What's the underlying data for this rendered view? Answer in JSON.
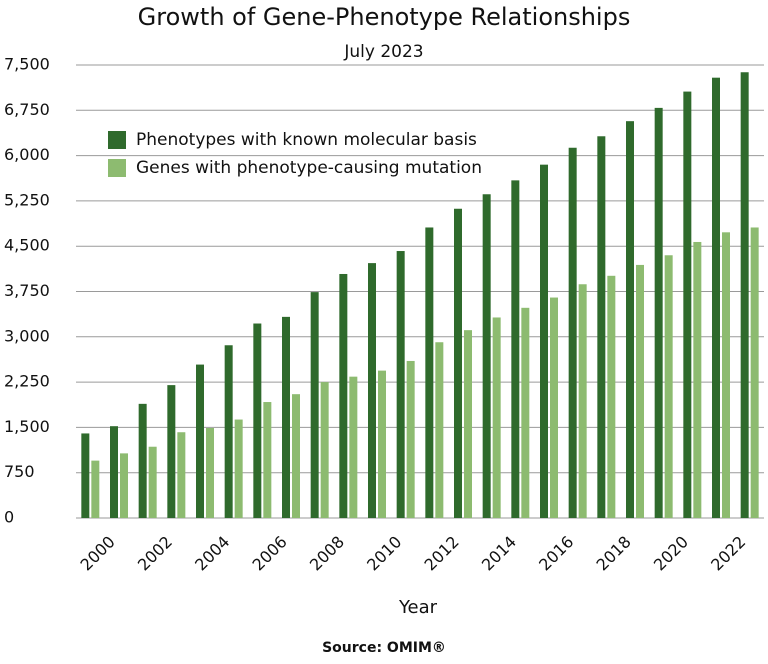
{
  "chart_data": {
    "type": "bar",
    "title": "Growth of Gene-Phenotype Relationships",
    "subtitle": "July 2023",
    "x_label": "Year",
    "source": "Source:  OMIM®",
    "categories": [
      "2000",
      null,
      "2002",
      null,
      "2004",
      null,
      "2006",
      null,
      "2008",
      null,
      "2010",
      null,
      "2012",
      null,
      "2014",
      null,
      "2016",
      null,
      "2018",
      null,
      "2020",
      null,
      "2022",
      null
    ],
    "series": [
      {
        "name": "Phenotypes with known molecular basis",
        "color": "#2f6a2c",
        "values": [
          1400,
          1520,
          1890,
          2200,
          2540,
          2860,
          3220,
          3330,
          3740,
          4040,
          4220,
          4420,
          4810,
          5120,
          5360,
          5590,
          5850,
          6130,
          6320,
          6570,
          6790,
          7060,
          7290,
          7380
        ]
      },
      {
        "name": "Genes with phenotype-causing mutation",
        "color": "#8dbb70",
        "values": [
          950,
          1070,
          1180,
          1420,
          1490,
          1630,
          1920,
          2050,
          2250,
          2340,
          2440,
          2600,
          2910,
          3110,
          3320,
          3480,
          3650,
          3870,
          4010,
          4190,
          4350,
          4570,
          4730,
          4810
        ]
      }
    ],
    "ylim": [
      0,
      7500
    ],
    "yticks": [
      0,
      750,
      {
        "value": 1500,
        "label": "1,500"
      },
      {
        "value": 2250,
        "label": "2,250"
      },
      {
        "value": 3000,
        "label": "3,000"
      },
      {
        "value": 3750,
        "label": "3,750"
      },
      {
        "value": 4500,
        "label": "4,500"
      },
      {
        "value": 5250,
        "label": "5,250"
      },
      {
        "value": 6000,
        "label": "6,000"
      },
      {
        "value": 6750,
        "label": "6,750"
      },
      {
        "value": 7500,
        "label": "7,500"
      }
    ],
    "grid": true,
    "legend": "upper left"
  }
}
